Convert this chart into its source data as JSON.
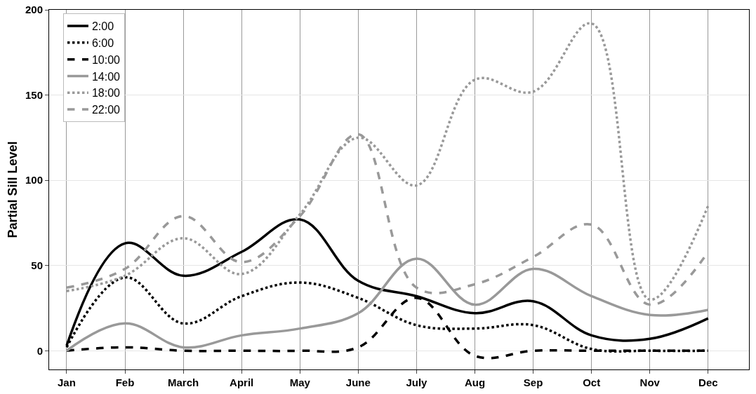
{
  "chart_data": {
    "type": "line",
    "ylabel": "Partial Sill Level",
    "categories": [
      "Jan",
      "Feb",
      "March",
      "April",
      "May",
      "June",
      "July",
      "Aug",
      "Sep",
      "Oct",
      "Nov",
      "Dec"
    ],
    "series": [
      {
        "name": "2:00",
        "color": "#000000",
        "line_style": "solid",
        "values": [
          3,
          63,
          44,
          58,
          77,
          41,
          32,
          22,
          29,
          9,
          7,
          19
        ]
      },
      {
        "name": "6:00",
        "color": "#000000",
        "line_style": "dotted",
        "values": [
          2,
          43,
          16,
          32,
          40,
          31,
          15,
          13,
          15,
          1,
          0,
          0
        ]
      },
      {
        "name": "10:00",
        "color": "#000000",
        "line_style": "dashed",
        "values": [
          0,
          2,
          0,
          0,
          0,
          2,
          31,
          -3,
          0,
          0,
          0,
          0
        ]
      },
      {
        "name": "14:00",
        "color": "#999999",
        "line_style": "solid",
        "values": [
          0,
          16,
          2,
          9,
          13,
          22,
          54,
          27,
          48,
          32,
          21,
          24
        ]
      },
      {
        "name": "18:00",
        "color": "#999999",
        "line_style": "dotted",
        "values": [
          35,
          44,
          66,
          45,
          80,
          125,
          97,
          159,
          152,
          192,
          30,
          85
        ]
      },
      {
        "name": "22:00",
        "color": "#999999",
        "line_style": "dashed",
        "values": [
          37,
          48,
          79,
          52,
          79,
          127,
          37,
          39,
          55,
          74,
          27,
          58
        ]
      }
    ],
    "ylim": [
      -11,
      200
    ],
    "yticks": [
      0,
      50,
      100,
      150,
      200
    ],
    "grid": true,
    "legend": "top left",
    "marker": "none"
  }
}
